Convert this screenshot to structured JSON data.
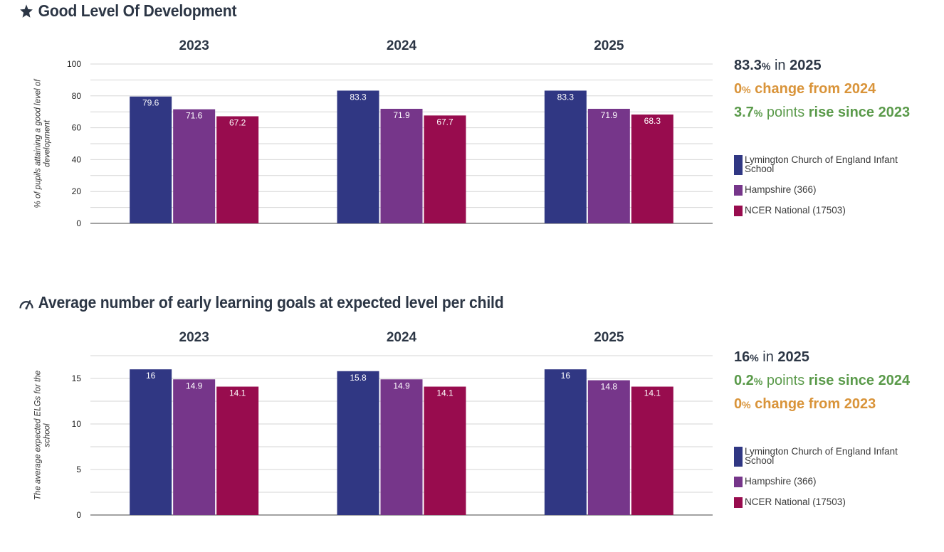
{
  "sections": [
    {
      "title": "Good Level Of Development",
      "icon": "star-icon",
      "stats": {
        "headline": {
          "value": "83.3",
          "pct": "%",
          "mid": " in ",
          "year": "2025"
        },
        "line2": {
          "value": "0",
          "pct": "%",
          "text": " change from 2024"
        },
        "line3": {
          "value": "3.7",
          "pct": "%",
          "mid": " points ",
          "text": "rise since 2023"
        }
      }
    },
    {
      "title": "Average number of early learning goals at expected level per child",
      "icon": "gauge-icon",
      "stats": {
        "headline": {
          "value": "16",
          "pct": "%",
          "mid": " in ",
          "year": "2025"
        },
        "line2": {
          "value": "0.2",
          "pct": "%",
          "mid": " points ",
          "text": "rise since 2024"
        },
        "line3": {
          "value": "0",
          "pct": "%",
          "text": " change from 2023"
        }
      }
    }
  ],
  "legend": [
    {
      "label": "Lymington Church of England Infant School",
      "color": "#303783"
    },
    {
      "label": "Hampshire (366)",
      "color": "#76368a"
    },
    {
      "label": "NCER National (17503)",
      "color": "#980c4e"
    }
  ],
  "chart_data": [
    {
      "type": "bar",
      "categories": [
        "2023",
        "2024",
        "2025"
      ],
      "ylabel": "% of pupils attaining a good level of development",
      "ylim": [
        0,
        100
      ],
      "yticks": [
        0,
        20,
        40,
        60,
        80,
        100
      ],
      "grid": true,
      "series": [
        {
          "name": "Lymington Church of England Infant School",
          "color": "#303783",
          "values": [
            79.6,
            83.3,
            83.3
          ]
        },
        {
          "name": "Hampshire (366)",
          "color": "#76368a",
          "values": [
            71.6,
            71.9,
            71.9
          ]
        },
        {
          "name": "NCER National (17503)",
          "color": "#980c4e",
          "values": [
            67.2,
            67.7,
            68.3
          ]
        }
      ]
    },
    {
      "type": "bar",
      "categories": [
        "2023",
        "2024",
        "2025"
      ],
      "ylabel": "The average expected ELGs for the school",
      "ylim": [
        0,
        17.5
      ],
      "yticks": [
        0,
        5,
        10,
        15
      ],
      "grid": true,
      "series": [
        {
          "name": "Lymington Church of England Infant School",
          "color": "#303783",
          "values": [
            16,
            15.8,
            16
          ]
        },
        {
          "name": "Hampshire (366)",
          "color": "#76368a",
          "values": [
            14.9,
            14.9,
            14.8
          ]
        },
        {
          "name": "NCER National (17503)",
          "color": "#980c4e",
          "values": [
            14.1,
            14.1,
            14.1
          ]
        }
      ]
    }
  ]
}
